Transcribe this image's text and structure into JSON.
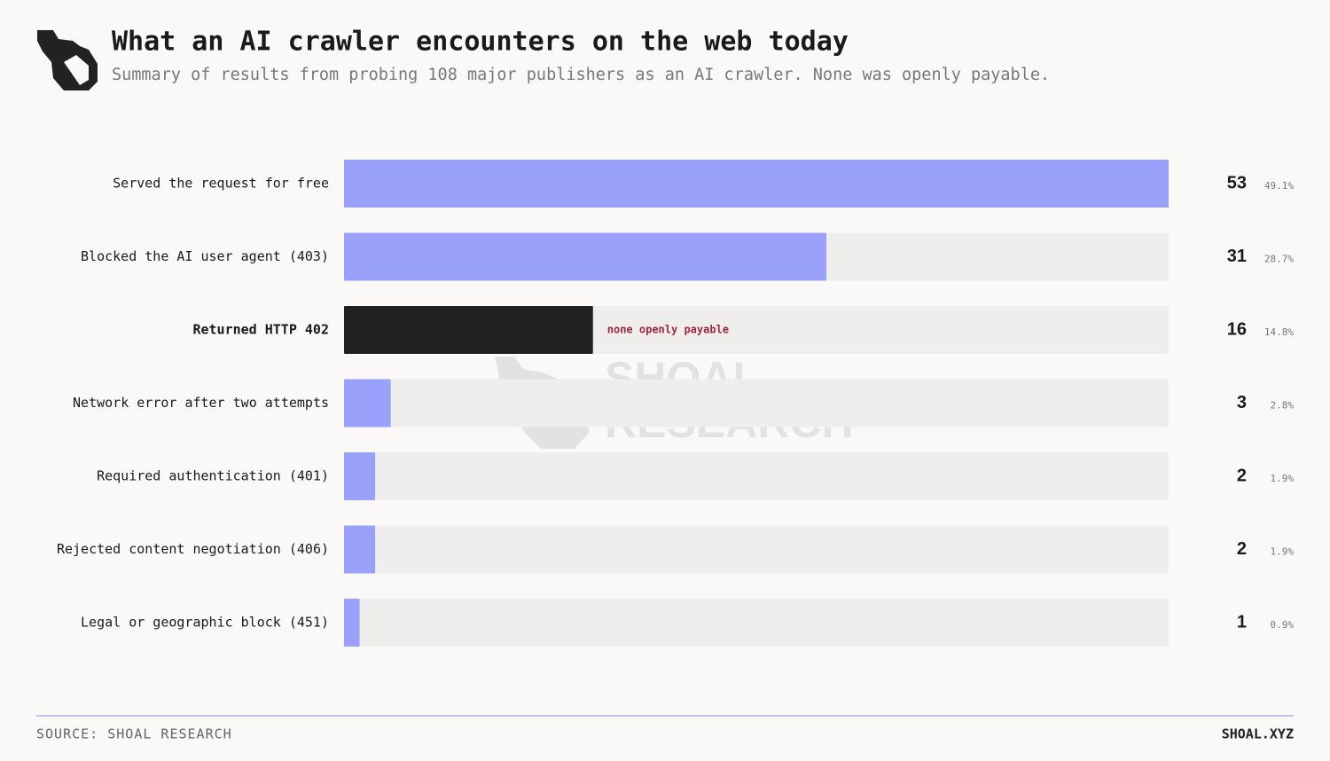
{
  "chart_data": {
    "type": "hbar",
    "title": "What an AI crawler encounters on the web today",
    "subtitle": "Summary of results from probing 108 major publishers as an AI crawler. None was openly payable.",
    "categories": [
      "Served the request for free",
      "Blocked the AI user agent (403)",
      "Returned HTTP 402",
      "Network error after two attempts",
      "Required authentication (401)",
      "Rejected content negotiation (406)",
      "Legal or geographic block (451)"
    ],
    "values": [
      53,
      31,
      16,
      3,
      2,
      2,
      1
    ],
    "percent_labels": [
      "49.1%",
      "28.7%",
      "14.8%",
      "2.8%",
      "1.9%",
      "1.9%",
      "0.9%"
    ],
    "colors": [
      "#9aa1fb",
      "#9aa1fb",
      "#222222",
      "#9aa1fb",
      "#9aa1fb",
      "#9aa1fb",
      "#9aa1fb"
    ],
    "xlim": [
      0,
      53
    ],
    "annotation": {
      "text": "none openly payable",
      "category": 2
    },
    "watermark": [
      "SHOAL",
      "RESEARCH"
    ],
    "source": "SOURCE: SHOAL RESEARCH",
    "site": "SHOAL.XYZ"
  }
}
